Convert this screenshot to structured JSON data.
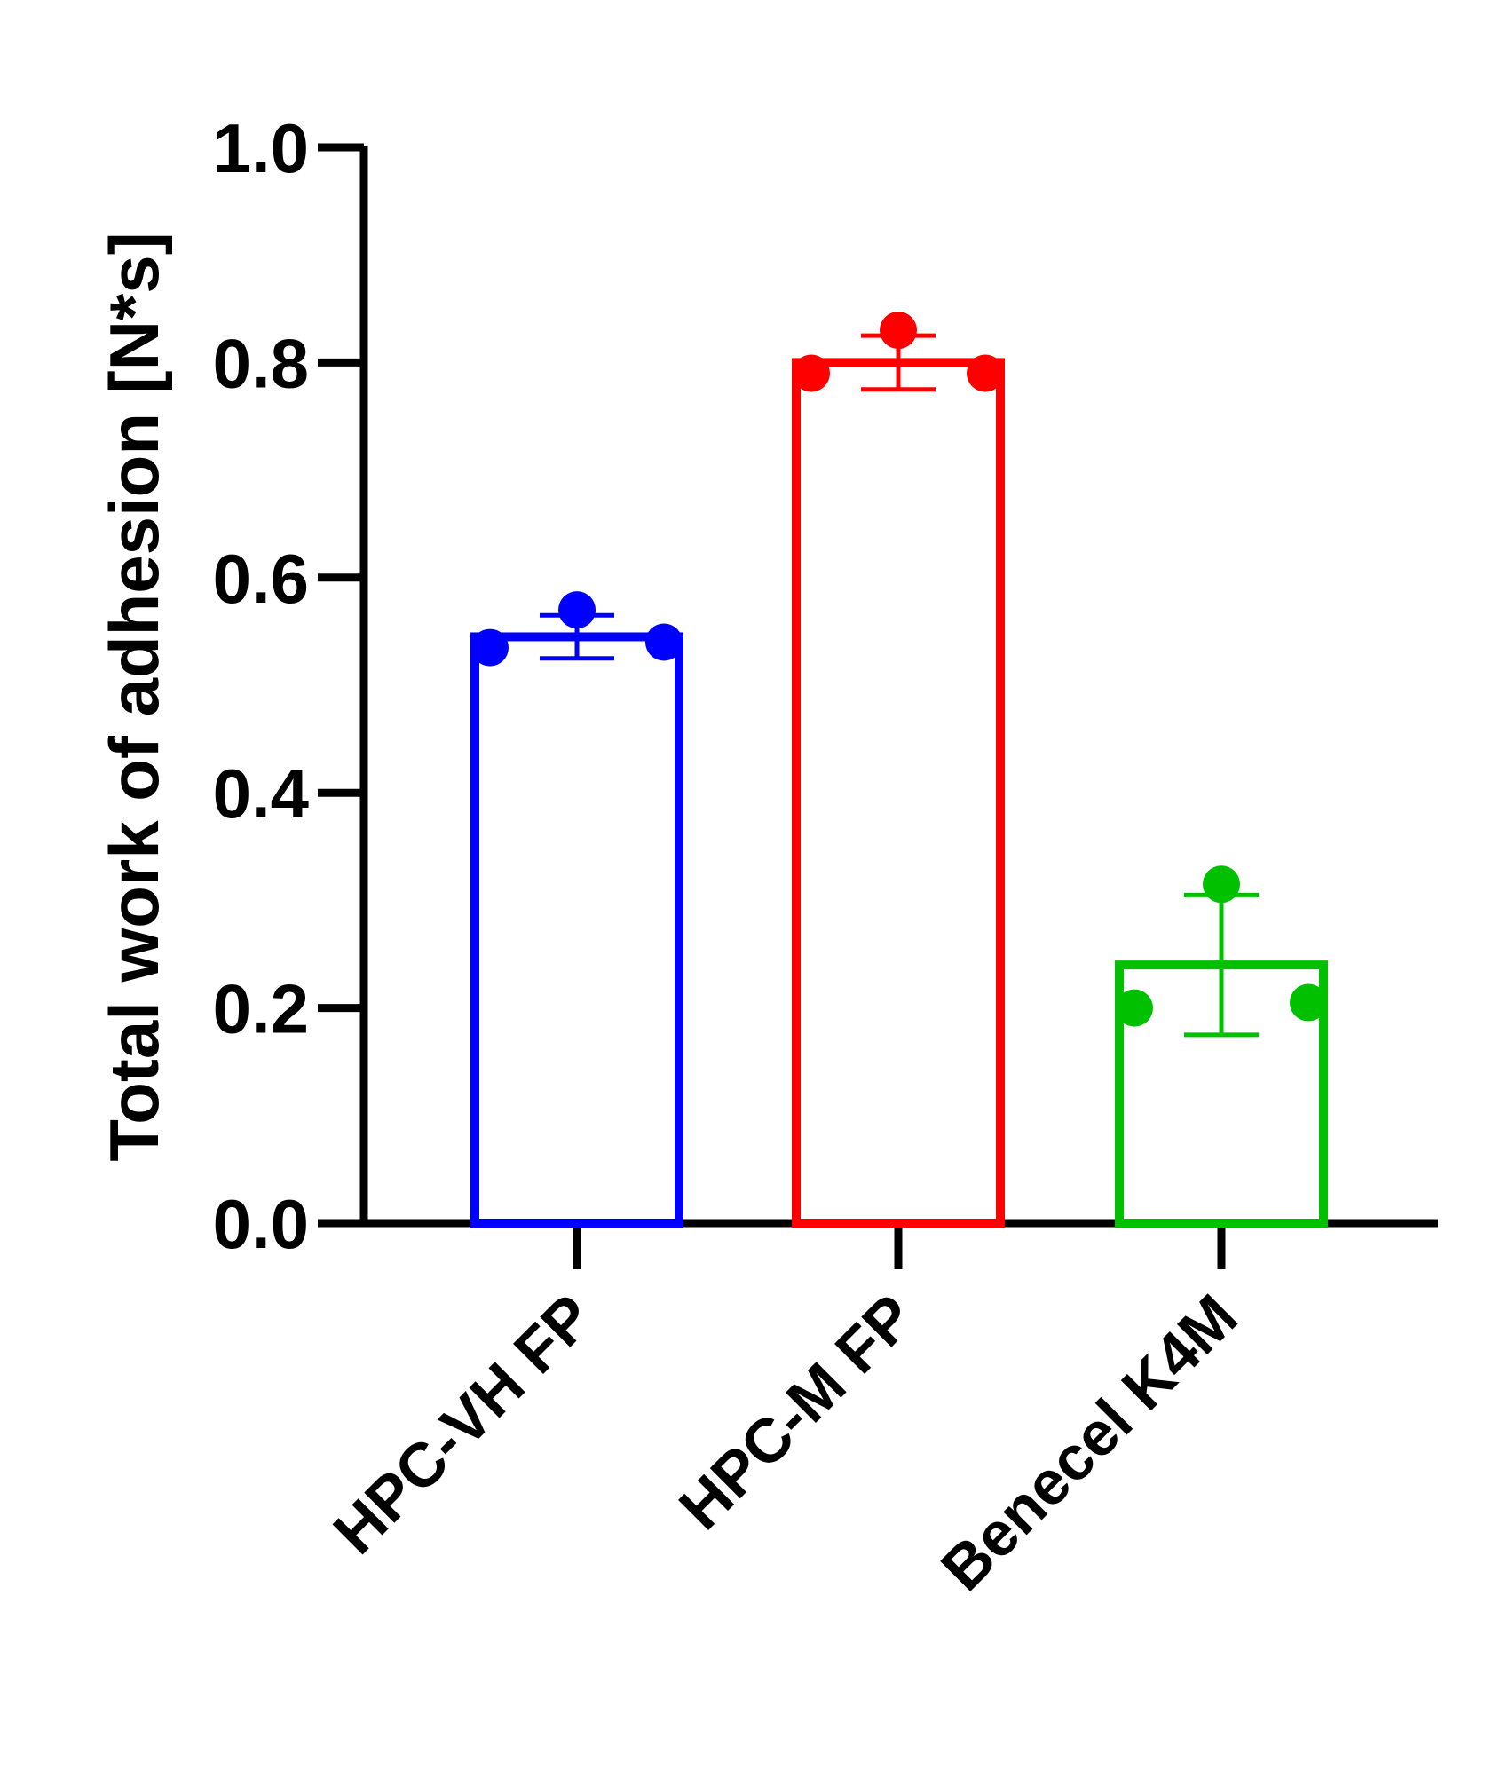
{
  "chart_data": {
    "type": "bar",
    "title": "",
    "xlabel": "",
    "ylabel": "Total work of adhesion [N*s]",
    "ylim": [
      0,
      1.0
    ],
    "yticks": [
      0.0,
      0.2,
      0.4,
      0.6,
      0.8,
      1.0
    ],
    "ytick_labels": [
      "0.0",
      "0.2",
      "0.4",
      "0.6",
      "0.8",
      "1.0"
    ],
    "grid": false,
    "legend": "none",
    "categories": [
      "HPC-VH FP",
      "HPC-M FP",
      "Benecel K4M"
    ],
    "colors": [
      "#0000ff",
      "#ff0000",
      "#00c000"
    ],
    "values": [
      0.545,
      0.8,
      0.24
    ],
    "error": [
      0.02,
      0.025,
      0.065
    ],
    "points": [
      [
        0.535,
        0.57,
        0.54
      ],
      [
        0.79,
        0.83,
        0.79
      ],
      [
        0.2,
        0.315,
        0.205
      ]
    ]
  }
}
